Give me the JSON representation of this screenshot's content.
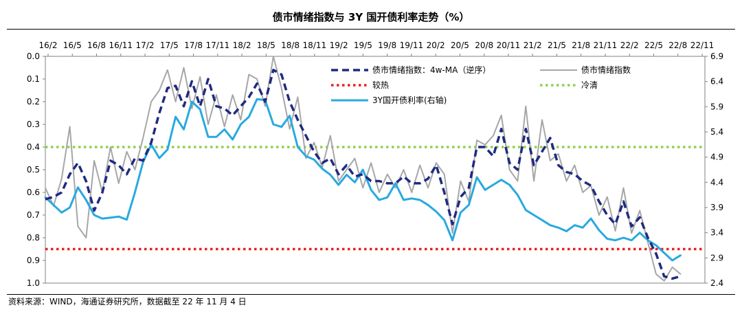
{
  "chart_data": {
    "type": "line",
    "title": "债市情绪指数与 3Y 国开债利率走势（%）",
    "source": "资料来源：WIND，海通证券研究所，数据截至 22 年 11 月 4 日",
    "x_tick_labels": [
      "16/2",
      "16/5",
      "16/8",
      "16/11",
      "17/2",
      "17/5",
      "17/8",
      "17/11",
      "18/2",
      "18/5",
      "18/8",
      "18/11",
      "19/2",
      "19/5",
      "19/8",
      "19/11",
      "20/2",
      "20/5",
      "20/8",
      "20/11",
      "21/2",
      "21/5",
      "21/8",
      "21/11",
      "22/2",
      "22/5",
      "22/8",
      "22/11"
    ],
    "y_left": {
      "ticks": [
        "0.0",
        "0.1",
        "0.2",
        "0.3",
        "0.4",
        "0.5",
        "0.6",
        "0.7",
        "0.8",
        "0.9",
        "1.0"
      ],
      "min": 0.0,
      "max": 1.0,
      "reversed": true
    },
    "y_right": {
      "ticks": [
        "6.9",
        "6.4",
        "5.9",
        "5.4",
        "4.9",
        "4.4",
        "3.9",
        "3.4",
        "2.9",
        "2.4"
      ],
      "min": 2.4,
      "max": 6.9
    },
    "legend": [
      {
        "name": "债市情绪指数：4w-MA（逆序）",
        "color": "#1f2a80",
        "style": "dashed"
      },
      {
        "name": "债市情绪指数",
        "color": "#a6a6a6",
        "style": "solid"
      },
      {
        "name": "较热",
        "color": "#e8201c",
        "style": "dotted"
      },
      {
        "name": "冷清",
        "color": "#8fd14f",
        "style": "dotted"
      },
      {
        "name": "3Y国开债利率(右轴)",
        "color": "#28a9e0",
        "style": "solid"
      }
    ],
    "reference_lines": {
      "hot": 0.85,
      "cold": 0.4
    },
    "x_range": [
      0,
      81
    ],
    "series": [
      {
        "name": "债市情绪指数：4w-MA（逆序）",
        "axis": "left",
        "points": [
          [
            0,
            0.63
          ],
          [
            1,
            0.62
          ],
          [
            2,
            0.6
          ],
          [
            3,
            0.52
          ],
          [
            4,
            0.47
          ],
          [
            5,
            0.55
          ],
          [
            6,
            0.68
          ],
          [
            7,
            0.6
          ],
          [
            8,
            0.46
          ],
          [
            9,
            0.48
          ],
          [
            10,
            0.52
          ],
          [
            11,
            0.45
          ],
          [
            12,
            0.46
          ],
          [
            13,
            0.38
          ],
          [
            14,
            0.25
          ],
          [
            15,
            0.14
          ],
          [
            16,
            0.13
          ],
          [
            17,
            0.22
          ],
          [
            18,
            0.11
          ],
          [
            19,
            0.22
          ],
          [
            20,
            0.1
          ],
          [
            21,
            0.22
          ],
          [
            22,
            0.23
          ],
          [
            23,
            0.26
          ],
          [
            24,
            0.22
          ],
          [
            25,
            0.18
          ],
          [
            26,
            0.12
          ],
          [
            27,
            0.2
          ],
          [
            28,
            0.06
          ],
          [
            29,
            0.08
          ],
          [
            30,
            0.2
          ],
          [
            31,
            0.28
          ],
          [
            32,
            0.35
          ],
          [
            33,
            0.42
          ],
          [
            34,
            0.47
          ],
          [
            35,
            0.45
          ],
          [
            36,
            0.52
          ],
          [
            37,
            0.48
          ],
          [
            38,
            0.53
          ],
          [
            39,
            0.52
          ],
          [
            40,
            0.55
          ],
          [
            41,
            0.55
          ],
          [
            42,
            0.56
          ],
          [
            43,
            0.56
          ],
          [
            44,
            0.53
          ],
          [
            45,
            0.56
          ],
          [
            46,
            0.56
          ],
          [
            47,
            0.54
          ],
          [
            48,
            0.48
          ],
          [
            49,
            0.6
          ],
          [
            50,
            0.74
          ],
          [
            51,
            0.62
          ],
          [
            52,
            0.58
          ],
          [
            53,
            0.4
          ],
          [
            54,
            0.4
          ],
          [
            55,
            0.44
          ],
          [
            56,
            0.32
          ],
          [
            57,
            0.47
          ],
          [
            58,
            0.5
          ],
          [
            59,
            0.32
          ],
          [
            60,
            0.48
          ],
          [
            61,
            0.42
          ],
          [
            62,
            0.36
          ],
          [
            63,
            0.48
          ],
          [
            64,
            0.51
          ],
          [
            65,
            0.52
          ],
          [
            66,
            0.55
          ],
          [
            67,
            0.57
          ],
          [
            68,
            0.64
          ],
          [
            69,
            0.7
          ],
          [
            70,
            0.74
          ],
          [
            71,
            0.64
          ],
          [
            72,
            0.75
          ],
          [
            73,
            0.71
          ],
          [
            74,
            0.8
          ],
          [
            75,
            0.87
          ],
          [
            76,
            0.97
          ],
          [
            77,
            0.98
          ],
          [
            78,
            0.97
          ]
        ]
      },
      {
        "name": "债市情绪指数",
        "axis": "left",
        "points": [
          [
            0,
            0.58
          ],
          [
            1,
            0.66
          ],
          [
            2,
            0.54
          ],
          [
            3,
            0.31
          ],
          [
            4,
            0.75
          ],
          [
            5,
            0.8
          ],
          [
            6,
            0.46
          ],
          [
            7,
            0.6
          ],
          [
            8,
            0.4
          ],
          [
            9,
            0.56
          ],
          [
            10,
            0.42
          ],
          [
            11,
            0.5
          ],
          [
            12,
            0.36
          ],
          [
            13,
            0.2
          ],
          [
            14,
            0.15
          ],
          [
            15,
            0.06
          ],
          [
            16,
            0.2
          ],
          [
            17,
            0.05
          ],
          [
            18,
            0.23
          ],
          [
            19,
            0.09
          ],
          [
            20,
            0.3
          ],
          [
            21,
            0.17
          ],
          [
            22,
            0.31
          ],
          [
            23,
            0.17
          ],
          [
            24,
            0.28
          ],
          [
            25,
            0.08
          ],
          [
            26,
            0.1
          ],
          [
            27,
            0.22
          ],
          [
            28,
            0.0
          ],
          [
            29,
            0.14
          ],
          [
            30,
            0.32
          ],
          [
            31,
            0.18
          ],
          [
            32,
            0.45
          ],
          [
            33,
            0.38
          ],
          [
            34,
            0.49
          ],
          [
            35,
            0.35
          ],
          [
            36,
            0.55
          ],
          [
            37,
            0.5
          ],
          [
            38,
            0.45
          ],
          [
            39,
            0.58
          ],
          [
            40,
            0.47
          ],
          [
            41,
            0.6
          ],
          [
            42,
            0.52
          ],
          [
            43,
            0.58
          ],
          [
            44,
            0.5
          ],
          [
            45,
            0.6
          ],
          [
            46,
            0.48
          ],
          [
            47,
            0.58
          ],
          [
            48,
            0.47
          ],
          [
            49,
            0.52
          ],
          [
            50,
            0.78
          ],
          [
            51,
            0.55
          ],
          [
            52,
            0.64
          ],
          [
            53,
            0.37
          ],
          [
            54,
            0.39
          ],
          [
            55,
            0.35
          ],
          [
            56,
            0.26
          ],
          [
            57,
            0.5
          ],
          [
            58,
            0.55
          ],
          [
            59,
            0.22
          ],
          [
            60,
            0.55
          ],
          [
            61,
            0.28
          ],
          [
            62,
            0.46
          ],
          [
            63,
            0.43
          ],
          [
            64,
            0.55
          ],
          [
            65,
            0.48
          ],
          [
            66,
            0.6
          ],
          [
            67,
            0.57
          ],
          [
            68,
            0.7
          ],
          [
            69,
            0.62
          ],
          [
            70,
            0.77
          ],
          [
            71,
            0.58
          ],
          [
            72,
            0.78
          ],
          [
            73,
            0.68
          ],
          [
            74,
            0.82
          ],
          [
            75,
            0.96
          ],
          [
            76,
            0.99
          ],
          [
            77,
            0.93
          ],
          [
            78,
            0.96
          ]
        ]
      },
      {
        "name": "3Y国开债利率(右轴)",
        "axis": "right",
        "points": [
          [
            0,
            4.1
          ],
          [
            1,
            3.95
          ],
          [
            2,
            3.8
          ],
          [
            3,
            3.9
          ],
          [
            4,
            4.3
          ],
          [
            5,
            4.05
          ],
          [
            6,
            3.75
          ],
          [
            7,
            3.68
          ],
          [
            8,
            3.7
          ],
          [
            9,
            3.72
          ],
          [
            10,
            3.66
          ],
          [
            11,
            4.2
          ],
          [
            12,
            4.8
          ],
          [
            13,
            5.15
          ],
          [
            14,
            4.88
          ],
          [
            15,
            5.05
          ],
          [
            16,
            5.7
          ],
          [
            17,
            5.45
          ],
          [
            18,
            6.0
          ],
          [
            19,
            5.85
          ],
          [
            20,
            5.3
          ],
          [
            21,
            5.3
          ],
          [
            22,
            5.45
          ],
          [
            23,
            5.25
          ],
          [
            24,
            5.55
          ],
          [
            25,
            5.7
          ],
          [
            26,
            6.05
          ],
          [
            27,
            6.03
          ],
          [
            28,
            5.55
          ],
          [
            29,
            5.5
          ],
          [
            30,
            5.72
          ],
          [
            31,
            5.1
          ],
          [
            32,
            4.92
          ],
          [
            33,
            4.85
          ],
          [
            34,
            4.67
          ],
          [
            35,
            4.55
          ],
          [
            36,
            4.35
          ],
          [
            37,
            4.55
          ],
          [
            38,
            4.4
          ],
          [
            39,
            4.65
          ],
          [
            40,
            4.25
          ],
          [
            41,
            4.05
          ],
          [
            42,
            4.1
          ],
          [
            43,
            4.38
          ],
          [
            44,
            4.05
          ],
          [
            45,
            4.08
          ],
          [
            46,
            4.05
          ],
          [
            47,
            3.95
          ],
          [
            48,
            3.82
          ],
          [
            49,
            3.65
          ],
          [
            50,
            3.25
          ],
          [
            51,
            3.8
          ],
          [
            52,
            3.95
          ],
          [
            53,
            4.5
          ],
          [
            54,
            4.25
          ],
          [
            55,
            4.35
          ],
          [
            56,
            4.45
          ],
          [
            57,
            4.35
          ],
          [
            58,
            4.15
          ],
          [
            59,
            3.85
          ],
          [
            60,
            3.75
          ],
          [
            61,
            3.65
          ],
          [
            62,
            3.55
          ],
          [
            63,
            3.5
          ],
          [
            64,
            3.43
          ],
          [
            65,
            3.55
          ],
          [
            66,
            3.5
          ],
          [
            67,
            3.68
          ],
          [
            68,
            3.45
          ],
          [
            69,
            3.28
          ],
          [
            70,
            3.25
          ],
          [
            71,
            3.3
          ],
          [
            72,
            3.25
          ],
          [
            73,
            3.4
          ],
          [
            74,
            3.25
          ],
          [
            75,
            3.15
          ],
          [
            76,
            3.0
          ],
          [
            77,
            2.85
          ],
          [
            78,
            2.95
          ]
        ]
      }
    ]
  }
}
